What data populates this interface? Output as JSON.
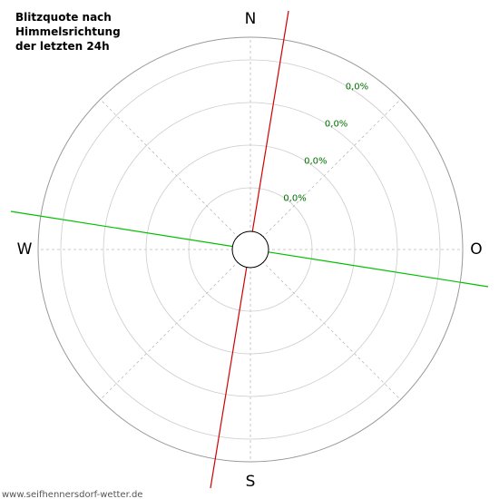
{
  "chart_data": {
    "type": "polar",
    "title": [
      "Blitzquote nach",
      "Himmelsrichtung",
      "der letzten 24h"
    ],
    "categories": [
      "N",
      "O",
      "S",
      "W"
    ],
    "ring_labels": [
      "0,0%",
      "0,0%",
      "0,0%",
      "0,0%"
    ],
    "footer": "www.seifhennersdorf-wetter.de"
  }
}
